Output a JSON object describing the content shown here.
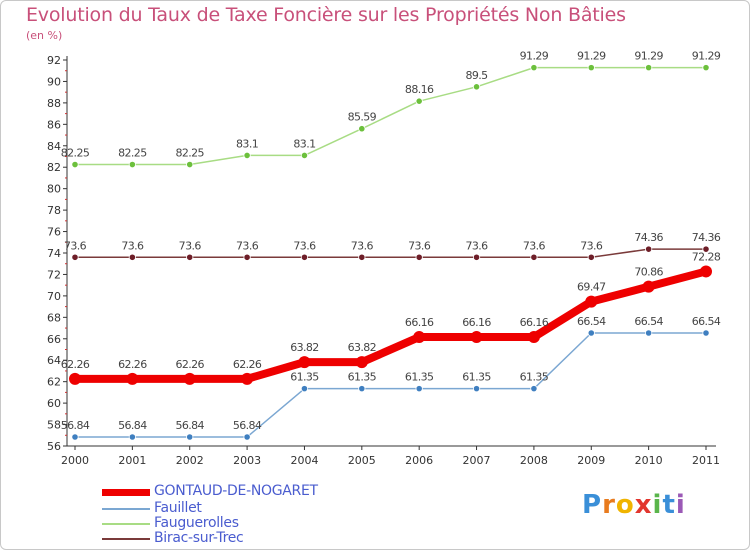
{
  "title": "Evolution du Taux de Taxe Foncière sur les Propriétés Non Bâties",
  "subtitle": "(en %)",
  "logo": {
    "text": "Proxiti",
    "letters": [
      "P",
      "r",
      "o",
      "x",
      "i",
      "t",
      "i"
    ],
    "colors": [
      "#3a8fd8",
      "#e87b1e",
      "#f0b400",
      "#e2362e",
      "#5ab54b",
      "#3a8fd8",
      "#9b59b6"
    ]
  },
  "chart_data": {
    "type": "line",
    "title": "Evolution du Taux de Taxe Foncière sur les Propriétés Non Bâties",
    "ylabel": "(en %)",
    "x": [
      "2000",
      "2001",
      "2002",
      "2003",
      "2004",
      "2005",
      "2006",
      "2007",
      "2008",
      "2009",
      "2010",
      "2011"
    ],
    "ylim": [
      56,
      92
    ],
    "yticks": [
      56,
      58,
      60,
      62,
      64,
      66,
      68,
      70,
      72,
      74,
      76,
      78,
      80,
      82,
      84,
      86,
      88,
      90,
      92
    ],
    "grid": false,
    "legend_position": "bottom-left",
    "series": [
      {
        "name": "GONTAUD-DE-NOGARET",
        "color": "#ee0000",
        "marker_color": "#ee0000",
        "emphasis": true,
        "values": [
          62.26,
          62.26,
          62.26,
          62.26,
          63.82,
          63.82,
          66.16,
          66.16,
          66.16,
          69.47,
          70.86,
          72.28
        ],
        "labels": [
          "62.26",
          "62.26",
          "62.26",
          "62.26",
          "63.82",
          "63.82",
          "66.16",
          "66.16",
          "66.16",
          "69.47",
          "70.86",
          "72.28"
        ]
      },
      {
        "name": "Fauillet",
        "color": "#7ba7d2",
        "marker_color": "#3f7fc0",
        "values": [
          56.84,
          56.84,
          56.84,
          56.84,
          61.35,
          61.35,
          61.35,
          61.35,
          61.35,
          66.54,
          66.54,
          66.54
        ],
        "labels": [
          "56.84",
          "56.84",
          "56.84",
          "56.84",
          "61.35",
          "61.35",
          "61.35",
          "61.35",
          "61.35",
          "66.54",
          "66.54",
          "66.54"
        ]
      },
      {
        "name": "Fauguerolles",
        "color": "#a8dc84",
        "marker_color": "#6cc03c",
        "values": [
          82.25,
          82.25,
          82.25,
          83.1,
          83.1,
          85.59,
          88.16,
          89.5,
          91.29,
          91.29,
          91.29,
          91.29
        ],
        "labels": [
          "82.25",
          "82.25",
          "82.25",
          "83.1",
          "83.1",
          "85.59",
          "88.16",
          "89.5",
          "91.29",
          "91.29",
          "91.29",
          "91.29"
        ]
      },
      {
        "name": "Birac-sur-Trec",
        "color": "#7a3a3a",
        "marker_color": "#6e1e28",
        "values": [
          73.6,
          73.6,
          73.6,
          73.6,
          73.6,
          73.6,
          73.6,
          73.6,
          73.6,
          73.6,
          74.36,
          74.36
        ],
        "labels": [
          "73.6",
          "73.6",
          "73.6",
          "73.6",
          "73.6",
          "73.6",
          "73.6",
          "73.6",
          "73.6",
          "73.6",
          "74.36",
          "74.36"
        ]
      }
    ]
  }
}
